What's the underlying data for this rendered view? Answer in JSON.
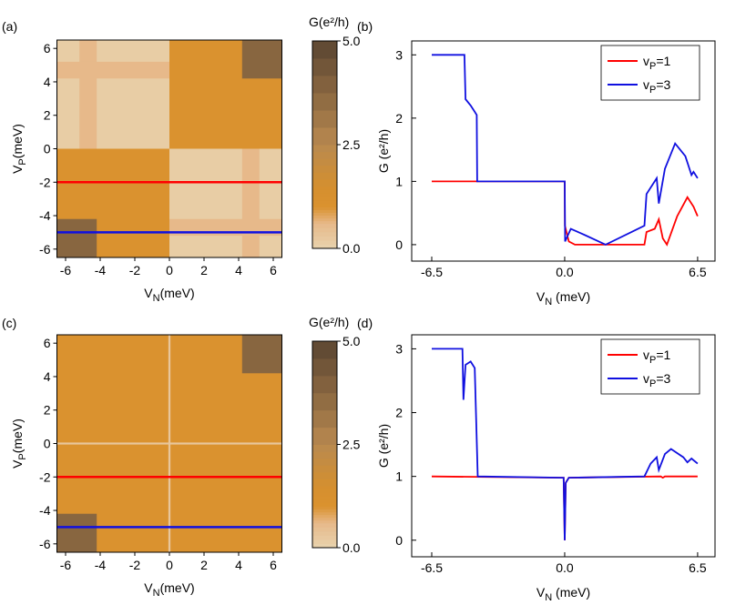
{
  "chart_data": [
    {
      "type": "heatmap",
      "panel_label": "(a)",
      "xlabel": [
        "V",
        "N",
        "(meV)"
      ],
      "ylabel": [
        "V",
        "P",
        "(meV)"
      ],
      "colorbar_label": "G(e²/h)",
      "xlim": [
        -6.5,
        6.5
      ],
      "ylim": [
        -6.5,
        6.5
      ],
      "xticks": [
        -6,
        -4,
        -2,
        0,
        2,
        4,
        6
      ],
      "yticks": [
        -6,
        -4,
        -2,
        0,
        2,
        4,
        6
      ],
      "clim": [
        0,
        5
      ],
      "cticks": [
        {
          "value": 0,
          "label": "0.0"
        },
        {
          "value": 2.5,
          "label": "2.5"
        },
        {
          "value": 5,
          "label": "5.0"
        }
      ],
      "colorscale": [
        [
          0,
          "#e8d3ae"
        ],
        [
          0.6,
          "#e7b98a"
        ],
        [
          1,
          "#da922f"
        ],
        [
          1.5,
          "#d48f2f"
        ],
        [
          2.5,
          "#b9894f"
        ],
        [
          5,
          "#5a4532"
        ]
      ],
      "cells": [
        {
          "x": [
            -6.5,
            0
          ],
          "y": [
            0,
            6.5
          ],
          "value": 0.15
        },
        {
          "x": [
            0,
            6.5
          ],
          "y": [
            0,
            6.5
          ],
          "value": 1
        },
        {
          "x": [
            -6.5,
            0
          ],
          "y": [
            -6.5,
            0
          ],
          "value": 1
        },
        {
          "x": [
            0,
            6.5
          ],
          "y": [
            -6.5,
            0
          ],
          "value": 0.15
        },
        {
          "x": [
            -5.2,
            -4.2
          ],
          "y": [
            0,
            6.5
          ],
          "value": 0.6
        },
        {
          "x": [
            -6.5,
            0
          ],
          "y": [
            4.2,
            5.2
          ],
          "value": 0.6
        },
        {
          "x": [
            4.2,
            5.2
          ],
          "y": [
            -6.5,
            0
          ],
          "value": 0.6
        },
        {
          "x": [
            0,
            6.5
          ],
          "y": [
            -5.2,
            -4.2
          ],
          "value": 0.6
        },
        {
          "x": [
            4.2,
            6.5
          ],
          "y": [
            4.2,
            6.5
          ],
          "value": 3.8
        },
        {
          "x": [
            -6.5,
            -4.2
          ],
          "y": [
            -6.5,
            -4.2
          ],
          "value": 3.8
        }
      ],
      "hlines": [
        {
          "y": -2,
          "color": "#ff0000"
        },
        {
          "y": -5,
          "color": "#1010e0"
        }
      ]
    },
    {
      "type": "line",
      "panel_label": "(b)",
      "xlabel": [
        "V",
        "N",
        " (meV)"
      ],
      "ylabel": "G (e²/h)",
      "xlim": [
        -7.48,
        7.35
      ],
      "ylim": [
        -0.26,
        3.22
      ],
      "xticks": [
        {
          "value": -6.5,
          "label": "-6.5"
        },
        {
          "value": 0,
          "label": "0.0"
        },
        {
          "value": 6.5,
          "label": "6.5"
        }
      ],
      "yticks": [
        0,
        1,
        2,
        3
      ],
      "legend": "upper right",
      "series": [
        {
          "name": [
            "v",
            "P",
            "=1"
          ],
          "color": "#ff0000",
          "x": [
            -6.5,
            0,
            0.01,
            0.2,
            0.5,
            3.9,
            4.0,
            4.4,
            4.6,
            4.8,
            5.0,
            5.5,
            6.0,
            6.3,
            6.5
          ],
          "values": [
            1,
            1,
            0.3,
            0.05,
            0,
            0,
            0.2,
            0.25,
            0.4,
            0.1,
            0,
            0.45,
            0.75,
            0.6,
            0.45
          ]
        },
        {
          "name": [
            "v",
            "P",
            "=3"
          ],
          "color": "#1010e0",
          "x": [
            -6.5,
            -4.9,
            -4.85,
            -4.6,
            -4.4,
            -4.3,
            -4.28,
            0,
            0.02,
            0.3,
            1.0,
            2.0,
            3.9,
            4.0,
            4.5,
            4.6,
            4.9,
            5.4,
            5.9,
            6.2,
            6.3,
            6.5
          ],
          "values": [
            3,
            3,
            2.3,
            2.2,
            2.1,
            2.05,
            1,
            1,
            0.05,
            0.25,
            0.15,
            0,
            0.3,
            0.8,
            1.05,
            0.65,
            1.2,
            1.6,
            1.4,
            1.1,
            1.15,
            1.05
          ]
        }
      ]
    },
    {
      "type": "heatmap",
      "panel_label": "(c)",
      "xlabel": [
        "V",
        "N",
        "(meV)"
      ],
      "ylabel": [
        "V",
        "P",
        "(meV)"
      ],
      "colorbar_label": "G(e²/h)",
      "xlim": [
        -6.5,
        6.5
      ],
      "ylim": [
        -6.5,
        6.5
      ],
      "xticks": [
        -6,
        -4,
        -2,
        0,
        2,
        4,
        6
      ],
      "yticks": [
        -6,
        -4,
        -2,
        0,
        2,
        4,
        6
      ],
      "clim": [
        0,
        5
      ],
      "cticks": [
        {
          "value": 0,
          "label": "0.0"
        },
        {
          "value": 2.5,
          "label": "2.5"
        },
        {
          "value": 5,
          "label": "5.0"
        }
      ],
      "colorscale": [
        [
          0,
          "#e8d3ae"
        ],
        [
          0.6,
          "#e7b98a"
        ],
        [
          1,
          "#da922f"
        ],
        [
          1.5,
          "#d48f2f"
        ],
        [
          2.5,
          "#b9894f"
        ],
        [
          5,
          "#5a4532"
        ]
      ],
      "cells": [
        {
          "x": [
            -6.5,
            6.5
          ],
          "y": [
            -6.5,
            6.5
          ],
          "value": 1
        },
        {
          "x": [
            -0.06,
            0.06
          ],
          "y": [
            -6.5,
            6.5
          ],
          "value": 0.3
        },
        {
          "x": [
            -6.5,
            6.5
          ],
          "y": [
            -0.06,
            0.06
          ],
          "value": 0.3
        },
        {
          "x": [
            4.2,
            6.5
          ],
          "y": [
            4.2,
            6.5
          ],
          "value": 3.8
        },
        {
          "x": [
            -6.5,
            -4.2
          ],
          "y": [
            -6.5,
            -4.2
          ],
          "value": 3.8
        }
      ],
      "hlines": [
        {
          "y": -2,
          "color": "#ff0000"
        },
        {
          "y": -5,
          "color": "#1010e0"
        }
      ]
    },
    {
      "type": "line",
      "panel_label": "(d)",
      "xlabel": [
        "V",
        "N",
        " (meV)"
      ],
      "ylabel": "G (e²/h)",
      "xlim": [
        -7.48,
        7.35
      ],
      "ylim": [
        -0.26,
        3.22
      ],
      "xticks": [
        {
          "value": -6.5,
          "label": "-6.5"
        },
        {
          "value": 0,
          "label": "0.0"
        },
        {
          "value": 6.5,
          "label": "6.5"
        }
      ],
      "yticks": [
        0,
        1,
        2,
        3
      ],
      "legend": "upper right",
      "series": [
        {
          "name": [
            "v",
            "P",
            "=1"
          ],
          "color": "#ff0000",
          "x": [
            -6.5,
            -0.05,
            0,
            0.05,
            0.2,
            4.7,
            4.8,
            4.9,
            6.5
          ],
          "values": [
            1,
            0.98,
            0,
            0.9,
            0.98,
            1,
            0.98,
            1,
            1
          ]
        },
        {
          "name": [
            "v",
            "P",
            "=3"
          ],
          "color": "#1010e0",
          "x": [
            -6.5,
            -5.0,
            -4.95,
            -4.85,
            -4.6,
            -4.4,
            -4.25,
            -0.05,
            0,
            0.05,
            0.2,
            3.9,
            4.2,
            4.5,
            4.6,
            4.9,
            5.2,
            5.8,
            6.0,
            6.2,
            6.5
          ],
          "values": [
            3,
            3,
            2.2,
            2.75,
            2.8,
            2.7,
            1,
            0.98,
            0,
            0.9,
            0.98,
            1,
            1.2,
            1.3,
            1.1,
            1.35,
            1.43,
            1.3,
            1.22,
            1.28,
            1.2
          ]
        }
      ]
    }
  ]
}
